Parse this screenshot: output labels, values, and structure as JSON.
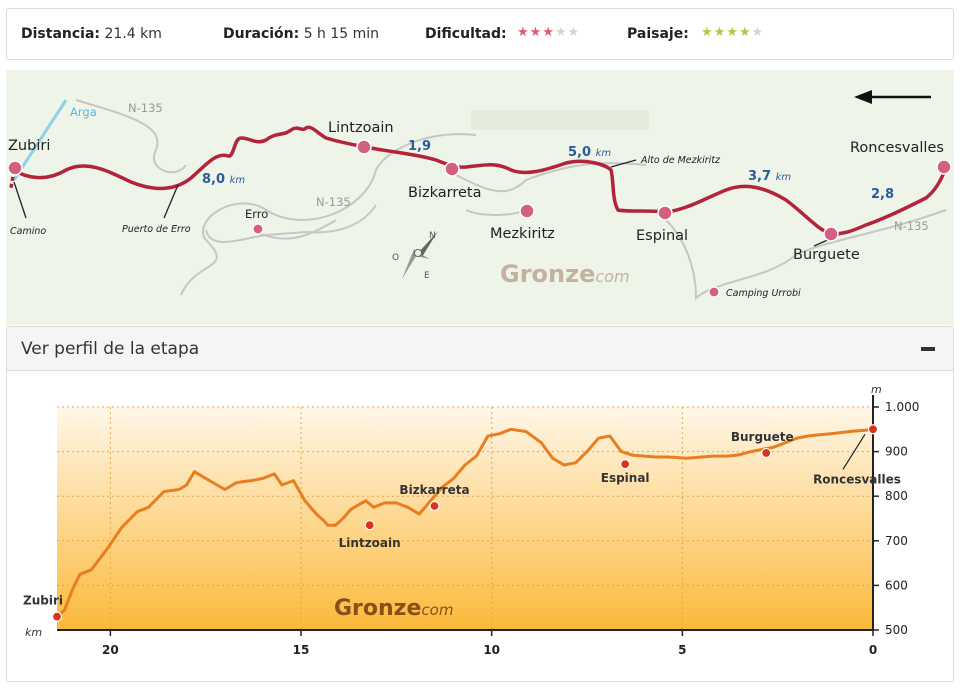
{
  "stats": {
    "distancia_label": "Distancia:",
    "distancia_value": "21.4 km",
    "duracion_label": "Duración:",
    "duracion_value": "5 h 15 min",
    "dificultad_label": "Dificultad:",
    "dificultad_rating": 3,
    "dificultad_max": 5,
    "dificultad_color": "#e05a6a",
    "paisaje_label": "Paisaje:",
    "paisaje_rating": 4,
    "paisaje_max": 5,
    "paisaje_color": "#a8cc44",
    "empty_star_color": "#d5d5d5"
  },
  "map": {
    "towns": {
      "zubiri": "Zubiri",
      "lintzoain": "Lintzoain",
      "bizkarreta": "Bizkarreta",
      "mezkiritz": "Mezkiritz",
      "espinal": "Espinal",
      "burguete": "Burguete",
      "roncesvalles": "Roncesvalles",
      "erro": "Erro"
    },
    "small_labels": {
      "camino": "Camino",
      "puerto_de_erro": "Puerto de Erro",
      "alto_de_mezkiritz": "Alto de Mezkiritz",
      "camping_urrobi": "Camping Urrobi"
    },
    "roads": {
      "n135_a": "N-135",
      "n135_b": "N-135",
      "n135_c": "N-135",
      "arga": "Arga"
    },
    "distances": {
      "d1": "8,0",
      "d2": "1,9",
      "d3": "5,0",
      "d4": "3,7",
      "d5": "2,8",
      "unit": "km"
    },
    "compass": {
      "n": "N",
      "o": "O",
      "e": "E"
    },
    "watermark": {
      "main": "Gronze",
      "sub": "com"
    },
    "route_color": "#b3243a"
  },
  "perfil": {
    "title": "Ver perfil de la etapa",
    "y_unit": "m",
    "x_unit": "km",
    "watermark": {
      "main": "Gronze",
      "sub": "com"
    }
  },
  "chart_data": {
    "type": "area",
    "x_direction": "reversed",
    "xlim": [
      21.4,
      0
    ],
    "ylim": [
      500,
      1000
    ],
    "x_ticks": [
      20,
      15,
      10,
      5,
      0
    ],
    "x_tick_labels": [
      "20",
      "15",
      "10",
      "5",
      "0"
    ],
    "y_ticks": [
      500,
      600,
      700,
      800,
      900,
      1000
    ],
    "y_tick_labels": [
      "500",
      "600",
      "700",
      "800",
      "900",
      "1.000"
    ],
    "grid": true,
    "line_color": "#e87e22",
    "profile": {
      "x": [
        21.4,
        21.2,
        21.0,
        20.8,
        20.5,
        20.1,
        19.7,
        19.3,
        19.0,
        18.6,
        18.2,
        18.0,
        17.8,
        17.5,
        17.2,
        17.0,
        16.9,
        16.7,
        16.5,
        16.3,
        16.0,
        15.7,
        15.5,
        15.2,
        14.9,
        14.6,
        14.4,
        14.3,
        14.1,
        13.9,
        13.7,
        13.5,
        13.3,
        13.1,
        12.8,
        12.5,
        12.2,
        11.9,
        11.6,
        11.3,
        11.0,
        10.7,
        10.4,
        10.1,
        9.8,
        9.5,
        9.1,
        8.7,
        8.4,
        8.1,
        7.8,
        7.5,
        7.2,
        6.9,
        6.6,
        6.3,
        6.0,
        5.7,
        5.4,
        5.2,
        4.9,
        4.6,
        4.2,
        3.8,
        3.5,
        3.2,
        2.9,
        2.6,
        2.3,
        2.0,
        1.7,
        1.4,
        1.1,
        0.8,
        0.5,
        0.2,
        0.0
      ],
      "y": [
        530,
        545,
        590,
        625,
        635,
        680,
        730,
        765,
        775,
        810,
        815,
        825,
        855,
        840,
        825,
        815,
        820,
        830,
        833,
        835,
        840,
        850,
        825,
        835,
        790,
        760,
        745,
        735,
        735,
        750,
        770,
        780,
        790,
        775,
        785,
        785,
        775,
        760,
        790,
        820,
        840,
        870,
        890,
        935,
        940,
        950,
        945,
        920,
        885,
        870,
        875,
        900,
        930,
        935,
        900,
        892,
        890,
        888,
        888,
        887,
        885,
        887,
        890,
        890,
        893,
        900,
        905,
        910,
        920,
        930,
        935,
        938,
        940,
        943,
        946,
        948,
        950
      ]
    },
    "points": [
      {
        "name": "Zubiri",
        "x": 21.4,
        "y": 530
      },
      {
        "name": "Lintzoain",
        "x": 13.2,
        "y": 735
      },
      {
        "name": "Bizkarreta",
        "x": 11.5,
        "y": 778
      },
      {
        "name": "Espinal",
        "x": 6.5,
        "y": 872
      },
      {
        "name": "Burguete",
        "x": 2.8,
        "y": 897
      },
      {
        "name": "Roncesvalles",
        "x": 0.0,
        "y": 950
      }
    ]
  }
}
